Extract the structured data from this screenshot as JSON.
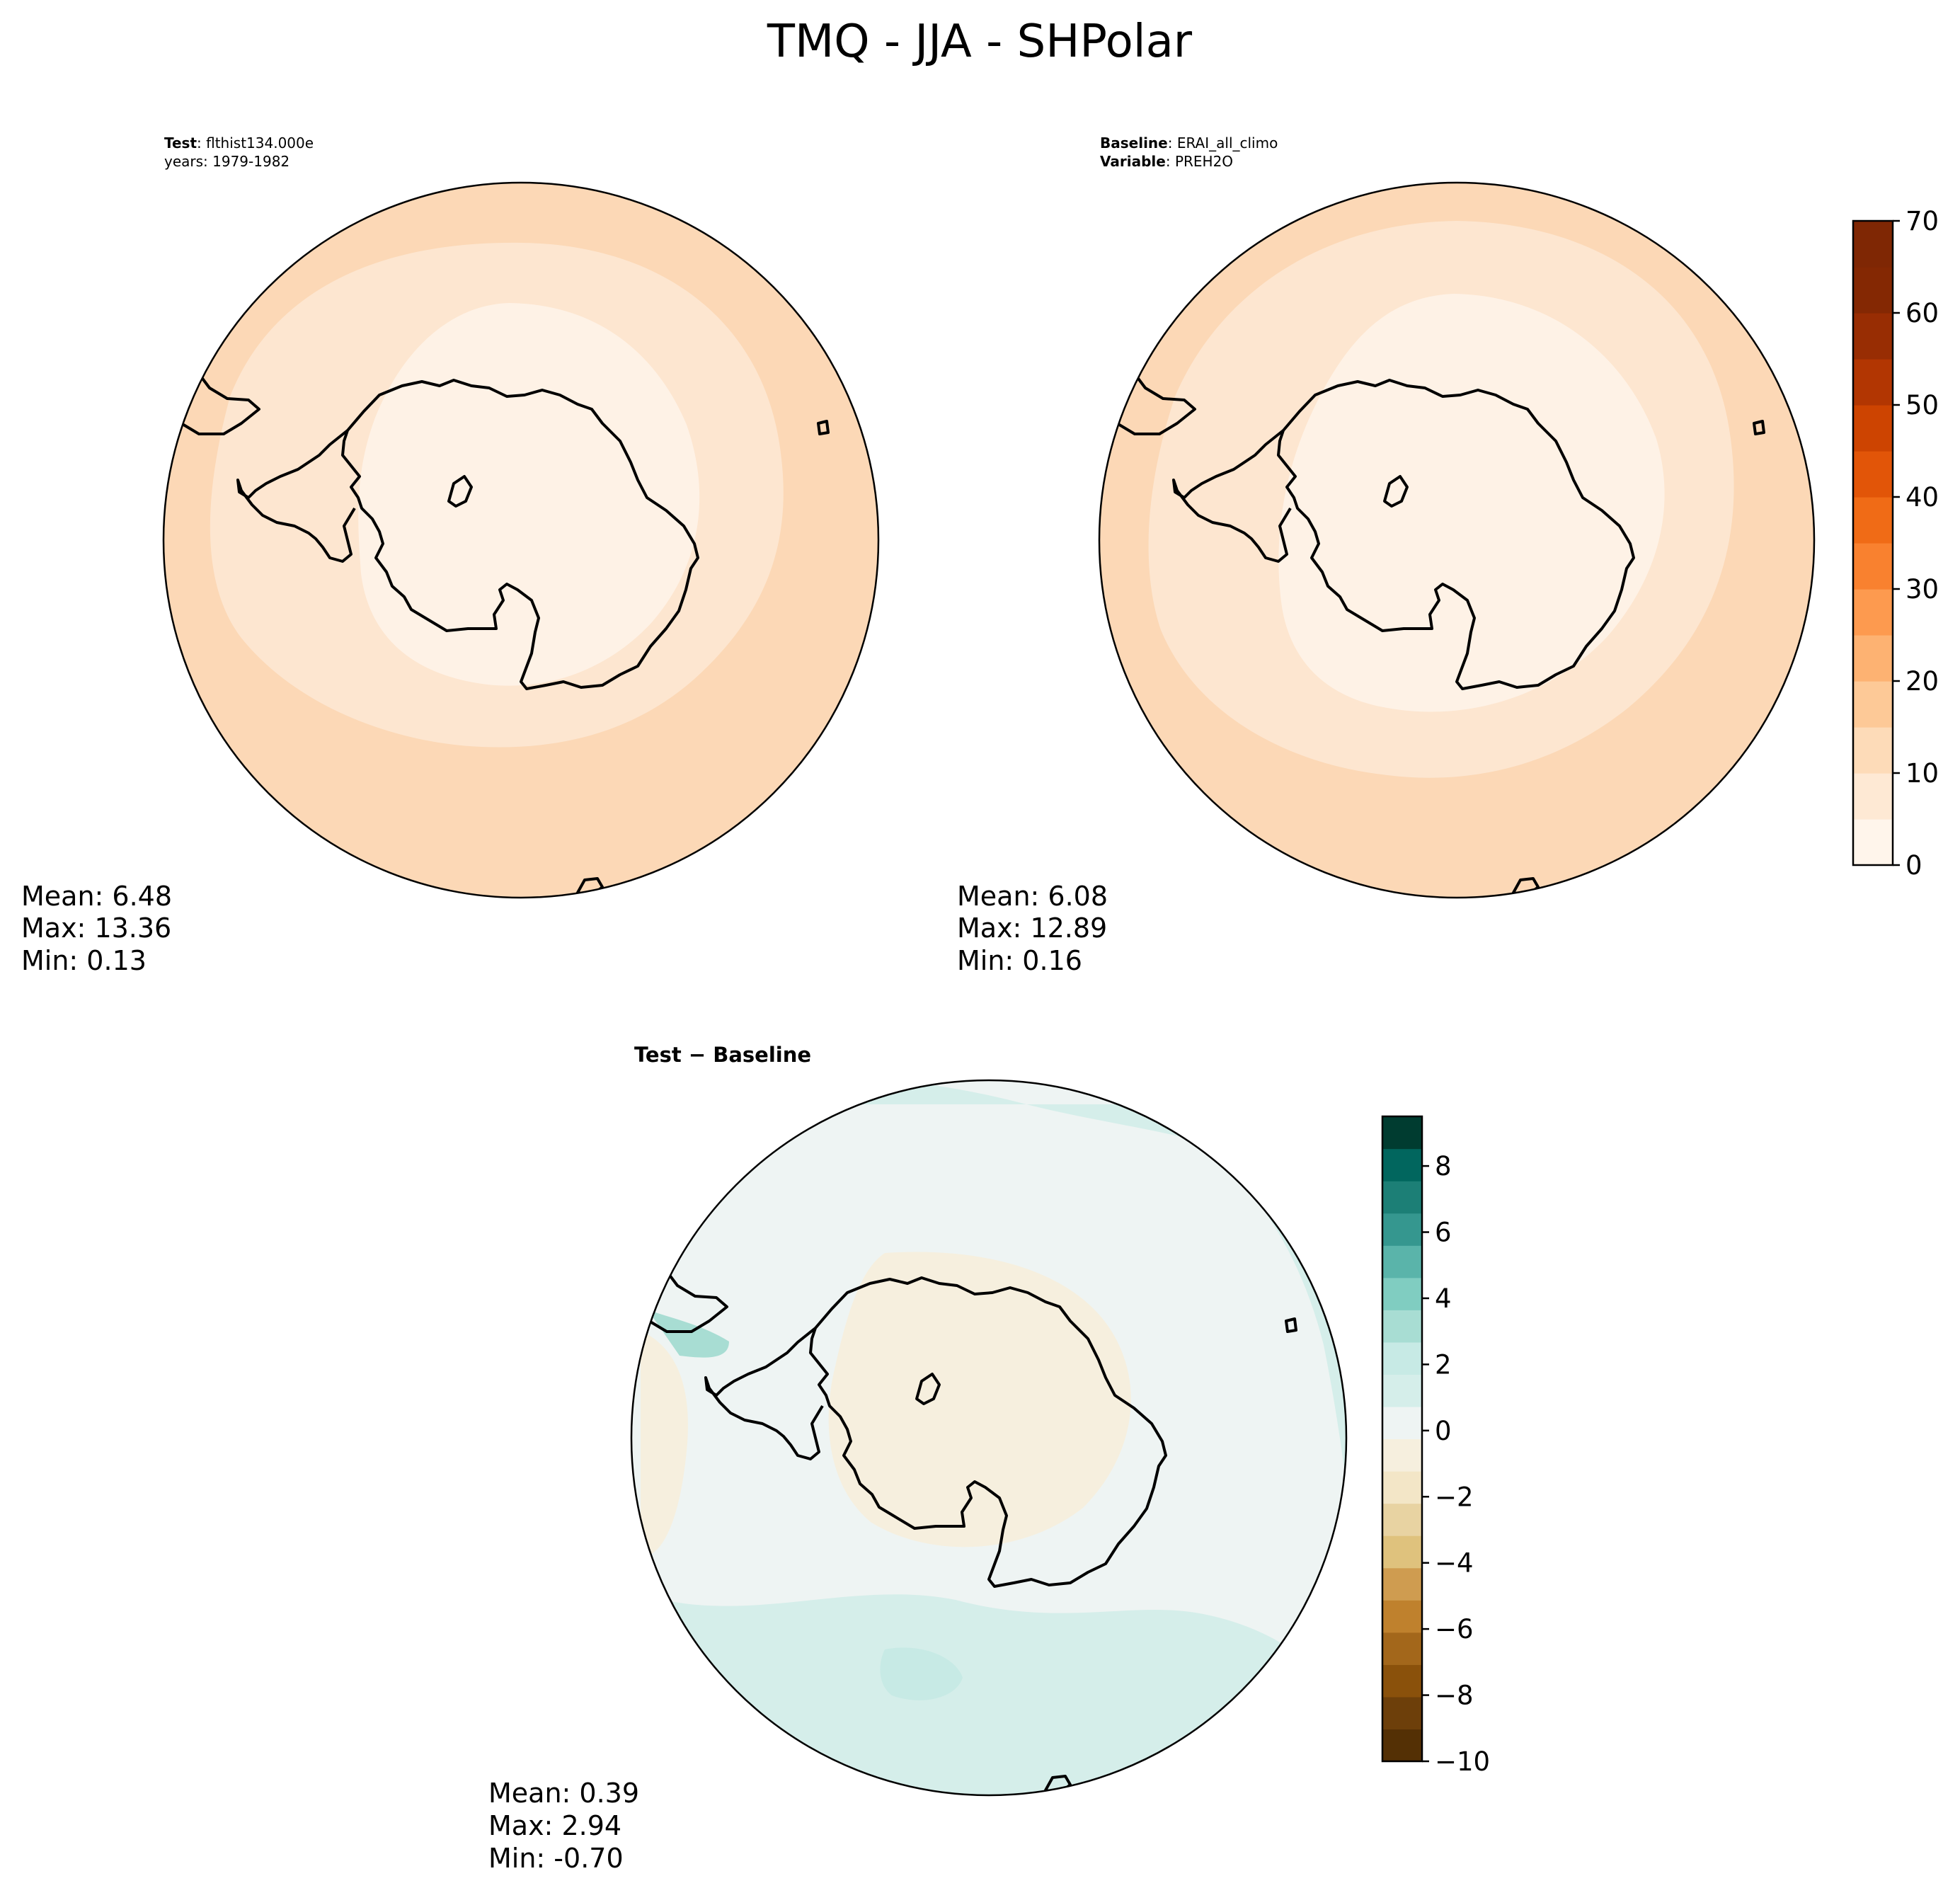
{
  "figure": {
    "title": "TMQ - JJA - SHPolar"
  },
  "chart_data": [
    {
      "type": "heatmap",
      "panel": "test",
      "header": {
        "label_bold": "Test",
        "label_value": ": flthist134.000e",
        "line2": "years: 1979-1982"
      },
      "stats": {
        "mean": "Mean:  6.48",
        "max": "Max: 13.36",
        "min": "Min:  0.13"
      },
      "values": {
        "mean": 6.48,
        "max": 13.36,
        "min": 0.13
      },
      "bands": [
        {
          "value_range": [
            0,
            5
          ],
          "color": "#fef2e6"
        },
        {
          "value_range": [
            5,
            10
          ],
          "color": "#fde6d0"
        },
        {
          "value_range": [
            10,
            15
          ],
          "color": "#fcd8b6"
        }
      ]
    },
    {
      "type": "heatmap",
      "panel": "baseline",
      "header": {
        "label_bold": "Baseline",
        "label_value": ": ERAI_all_climo",
        "line2_bold": "Variable",
        "line2_value": ": PREH2O"
      },
      "stats": {
        "mean": "Mean:  6.08",
        "max": "Max: 12.89",
        "min": "Min:  0.16"
      },
      "values": {
        "mean": 6.08,
        "max": 12.89,
        "min": 0.16
      },
      "bands": [
        {
          "value_range": [
            0,
            5
          ],
          "color": "#fef2e6"
        },
        {
          "value_range": [
            5,
            10
          ],
          "color": "#fde6d0"
        },
        {
          "value_range": [
            10,
            15
          ],
          "color": "#fcd8b6"
        }
      ]
    },
    {
      "type": "heatmap",
      "panel": "difference",
      "header": {
        "label": "Test − Baseline"
      },
      "stats": {
        "mean": "Mean:  0.39",
        "max": "Max:  2.94",
        "min": "Min: -0.70"
      },
      "values": {
        "mean": 0.39,
        "max": 2.94,
        "min": -0.7
      }
    }
  ],
  "colorbars": {
    "main": {
      "ticks": [
        "0",
        "10",
        "20",
        "30",
        "40",
        "50",
        "60",
        "70"
      ],
      "range": [
        0,
        70
      ],
      "levels": 14,
      "colors": [
        "#fff5eb",
        "#fee9d4",
        "#fddbb8",
        "#fdc997",
        "#fdb272",
        "#fd9a4f",
        "#f9812f",
        "#f06b16",
        "#e25508",
        "#cd4401",
        "#b23602",
        "#982d03",
        "#842803",
        "#7f2704"
      ]
    },
    "diff": {
      "ticks": [
        "−10",
        "−8",
        "−6",
        "−4",
        "−2",
        "0",
        "2",
        "4",
        "6",
        "8"
      ],
      "range": [
        -10,
        9.5
      ],
      "levels": 20,
      "colors": [
        "#543005",
        "#6d3f0a",
        "#8a510b",
        "#a3671b",
        "#bf812d",
        "#cf9c50",
        "#dfc27d",
        "#e8d3a2",
        "#f3e6c7",
        "#f6efde",
        "#eef4f3",
        "#d5eeea",
        "#c7eae5",
        "#a8ddd3",
        "#80cdc1",
        "#5ab4aa",
        "#35978f",
        "#1c7f76",
        "#01665e",
        "#003c30"
      ]
    }
  }
}
